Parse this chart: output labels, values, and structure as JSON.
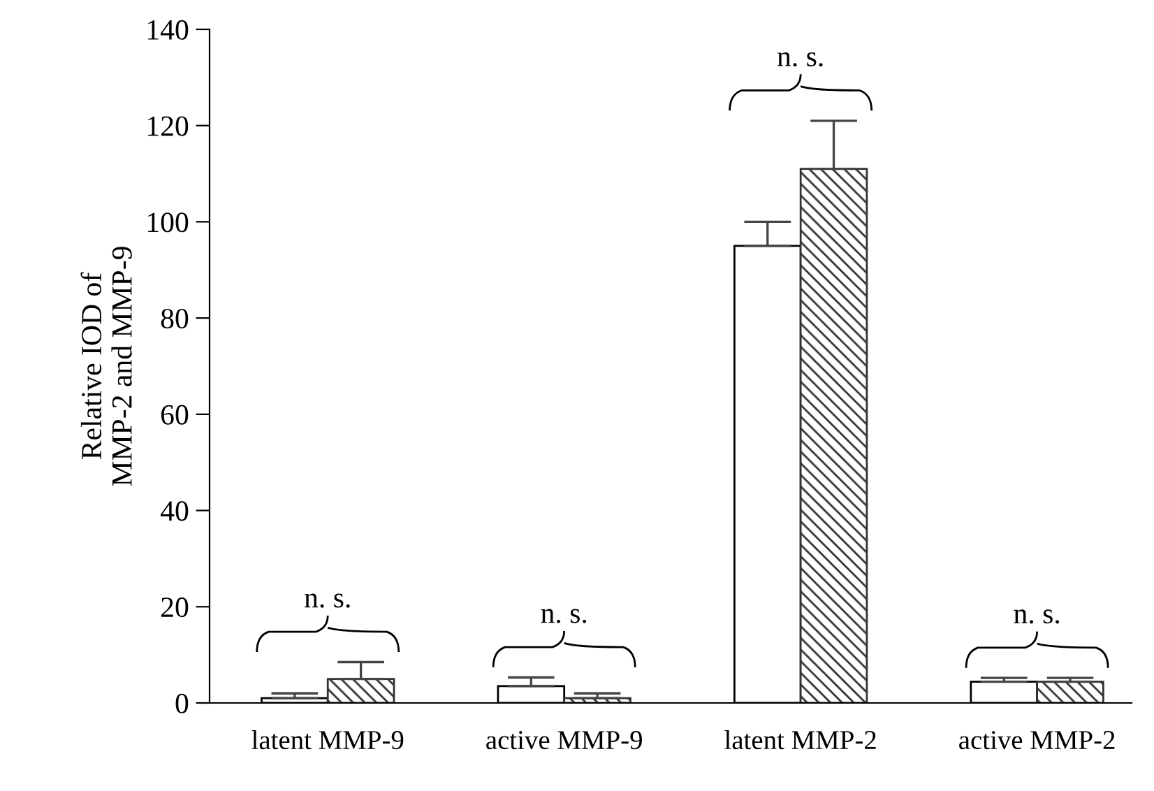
{
  "chart_data": {
    "type": "bar",
    "ylabel": "Relative IOD of\nMMP-2 and MMP-9",
    "categories": [
      "latent MMP-9",
      "active MMP-9",
      "latent MMP-2",
      "active MMP-2"
    ],
    "series": [
      {
        "color": "#ffffff",
        "values": [
          1,
          3.5,
          95,
          4.4
        ],
        "errors": [
          1,
          1.8,
          5,
          0.8
        ]
      },
      {
        "color": "#333333",
        "values": [
          5,
          1,
          111,
          4.4
        ],
        "errors": [
          3.5,
          1,
          10,
          0.8
        ]
      }
    ],
    "ylim": [
      0,
      140
    ],
    "yticks": [
      0,
      20,
      40,
      60,
      80,
      100,
      120,
      140
    ],
    "grid": false,
    "legend": false,
    "annotations": [
      "n. s.",
      "n. s.",
      "n. s.",
      "n. s."
    ]
  }
}
